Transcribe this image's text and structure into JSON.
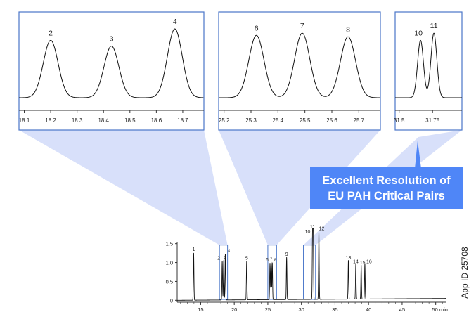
{
  "side_label": "App ID 25708",
  "banner": {
    "line1": "Excellent Resolution of",
    "line2": "EU PAH Critical Pairs"
  },
  "colors": {
    "accent": "#4f86f7",
    "callout_fill": "#d4ddfa",
    "frame": "#4a76c9",
    "trace": "#111111"
  },
  "chart_data": [
    {
      "type": "line",
      "title": "",
      "xlabel": "",
      "ylabel": "",
      "x_unit": "min",
      "xlim": [
        11.5,
        51.5
      ],
      "ylim": [
        -0.05,
        1.55
      ],
      "x_ticks": [
        15,
        20,
        25,
        30,
        35,
        40,
        45,
        50
      ],
      "x_tick_labels": [
        "15",
        "20",
        "25",
        "30",
        "35",
        "40",
        "45",
        "50 min"
      ],
      "y_ticks": [
        0,
        0.5,
        1.0,
        1.5
      ],
      "y_tick_labels": [
        "0",
        "0.5",
        "1.0",
        "1.5"
      ],
      "peaks": [
        {
          "label": "1",
          "rt": 13.95,
          "height": 1.25
        },
        {
          "label": "2",
          "rt": 18.21,
          "height": 1.02
        },
        {
          "label": "3",
          "rt": 18.43,
          "height": 1.05
        },
        {
          "label": "4",
          "rt": 18.67,
          "height": 1.22
        },
        {
          "label": "5",
          "rt": 21.85,
          "height": 1.02
        },
        {
          "label": "6",
          "rt": 25.32,
          "height": 0.97
        },
        {
          "label": "7",
          "rt": 25.49,
          "height": 1.0
        },
        {
          "label": "8",
          "rt": 25.66,
          "height": 0.98
        },
        {
          "label": "9",
          "rt": 27.8,
          "height": 1.12
        },
        {
          "label": "10",
          "rt": 31.66,
          "height": 1.72
        },
        {
          "label": "11",
          "rt": 31.76,
          "height": 1.85
        },
        {
          "label": "12",
          "rt": 32.6,
          "height": 1.8
        },
        {
          "label": "13",
          "rt": 37.0,
          "height": 1.03
        },
        {
          "label": "14",
          "rt": 38.1,
          "height": 0.93
        },
        {
          "label": "15",
          "rt": 38.9,
          "height": 0.9
        },
        {
          "label": "16",
          "rt": 39.45,
          "height": 0.93
        }
      ],
      "zoom_windows": [
        [
          17.8,
          19.0
        ],
        [
          25.0,
          26.3
        ],
        [
          30.3,
          32.1
        ]
      ]
    },
    {
      "type": "line",
      "title": "",
      "xlim": [
        18.08,
        18.78
      ],
      "x_ticks": [
        18.1,
        18.2,
        18.3,
        18.4,
        18.5,
        18.6,
        18.7
      ],
      "x_tick_labels": [
        "18.1",
        "18.2",
        "18.3",
        "18.4",
        "18.5",
        "18.6",
        "18.7"
      ],
      "peaks": [
        {
          "label": "2",
          "rt": 18.2,
          "height": 0.8
        },
        {
          "label": "3",
          "rt": 18.43,
          "height": 0.72
        },
        {
          "label": "4",
          "rt": 18.67,
          "height": 0.96
        }
      ]
    },
    {
      "type": "line",
      "title": "",
      "xlim": [
        25.18,
        25.78
      ],
      "x_ticks": [
        25.2,
        25.3,
        25.4,
        25.5,
        25.6,
        25.7
      ],
      "x_tick_labels": [
        "25.2",
        "25.3",
        "25.4",
        "25.5",
        "25.6",
        "25.7"
      ],
      "peaks": [
        {
          "label": "6",
          "rt": 25.32,
          "height": 0.87
        },
        {
          "label": "7",
          "rt": 25.49,
          "height": 0.9
        },
        {
          "label": "8",
          "rt": 25.66,
          "height": 0.85
        }
      ]
    },
    {
      "type": "line",
      "title": "",
      "xlim": [
        31.47,
        31.97
      ],
      "x_ticks": [
        31.5,
        31.75
      ],
      "x_tick_labels": [
        "31.5",
        "31.75"
      ],
      "peaks": [
        {
          "label": "10",
          "rt": 31.66,
          "height": 0.8
        },
        {
          "label": "11",
          "rt": 31.76,
          "height": 0.9
        }
      ]
    }
  ]
}
